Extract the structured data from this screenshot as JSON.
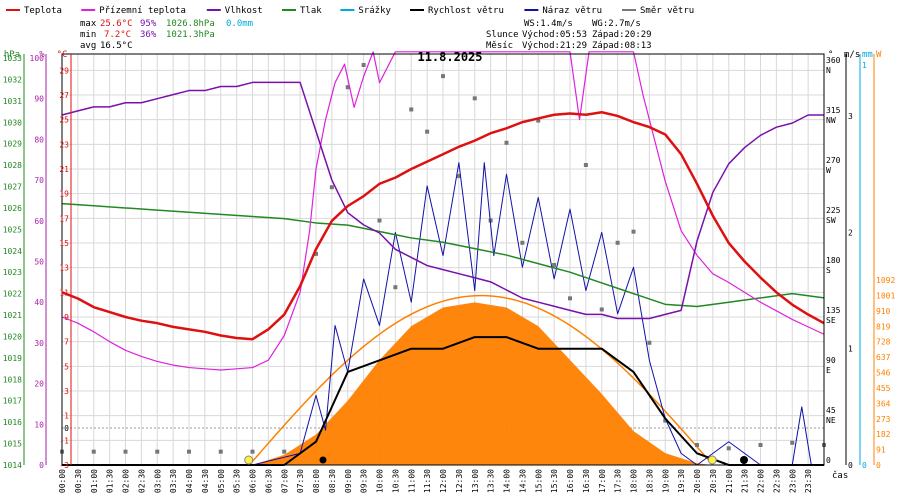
{
  "chart_data": {
    "type": "line",
    "title": "11.8.2025",
    "x_label": "čas",
    "x_ticks": [
      "00:00",
      "00:30",
      "01:00",
      "01:30",
      "02:00",
      "02:30",
      "03:00",
      "03:30",
      "04:00",
      "04:30",
      "05:00",
      "05:30",
      "06:00",
      "06:30",
      "07:00",
      "07:30",
      "08:00",
      "08:30",
      "09:00",
      "09:30",
      "10:00",
      "10:30",
      "11:00",
      "11:30",
      "12:00",
      "12:30",
      "13:00",
      "13:30",
      "14:00",
      "14:30",
      "15:00",
      "15:30",
      "16:00",
      "16:30",
      "17:00",
      "17:30",
      "18:00",
      "18:30",
      "19:00",
      "19:30",
      "20:00",
      "20:30",
      "21:00",
      "21:30",
      "22:00",
      "22:30",
      "23:00",
      "23:30"
    ],
    "legend": [
      {
        "label": "Teplota",
        "color": "#dd1111"
      },
      {
        "label": "Přízemní teplota",
        "color": "#dd22dd"
      },
      {
        "label": "Vlhkost",
        "color": "#7711aa"
      },
      {
        "label": "Tlak",
        "color": "#228822"
      },
      {
        "label": "Srážky",
        "color": "#00aadd"
      },
      {
        "label": "Rychlost větru",
        "color": "#000000"
      },
      {
        "label": "Náraz větru",
        "color": "#1111aa"
      },
      {
        "label": "Směr větru",
        "color": "#777777"
      }
    ],
    "stats": {
      "max": {
        "label": "max",
        "temp": "25.6°C",
        "hum": "95%",
        "press": "1026.8hPa",
        "rain": "0.0mm"
      },
      "min": {
        "label": "min",
        "temp": "7.2°C",
        "hum": "36%",
        "press": "1021.3hPa"
      },
      "avg": {
        "label": "avg",
        "temp": "16.5°C"
      }
    },
    "info": {
      "ws": "WS:1.4m/s",
      "wg": "WG:2.7m/s",
      "sun_label": "Slunce",
      "sun_rise": "Východ:05:53",
      "sun_set": "Západ:20:29",
      "moon_label": "Měsíc",
      "moon_rise": "Východ:21:29",
      "moon_set": "Západ:08:13"
    },
    "axes": {
      "hpa": {
        "label": "hPa",
        "ticks": [
          "1014",
          "1015",
          "1016",
          "1017",
          "1018",
          "1019",
          "1020",
          "1021",
          "1022",
          "1023",
          "1024",
          "1025",
          "1026",
          "1027",
          "1028",
          "1029",
          "1030",
          "1031",
          "1032",
          "1033"
        ]
      },
      "percent": {
        "label": "%",
        "ticks": [
          "0",
          "10",
          "20",
          "30",
          "40",
          "50",
          "60",
          "70",
          "80",
          "90",
          "100"
        ]
      },
      "celsius": {
        "label": "°C",
        "ticks": [
          "-3",
          "-1",
          "1",
          "3",
          "5",
          "7",
          "9",
          "11",
          "13",
          "15",
          "17",
          "19",
          "21",
          "23",
          "25",
          "27",
          "29"
        ]
      },
      "cgrid_extra": [
        "0"
      ],
      "direction": {
        "label": "°",
        "ticks": [
          "0",
          "45 NE",
          "90 E",
          "135 SE",
          "180 S",
          "225 SW",
          "270 W",
          "315 NW",
          "360 N"
        ]
      },
      "wind": {
        "label": "m/s",
        "ticks": [
          "0",
          "1",
          "2",
          "3"
        ]
      },
      "rain": {
        "label": "mm",
        "ticks": [
          "0",
          "1"
        ]
      },
      "solar": {
        "label": "W",
        "ticks": [
          "0",
          "91",
          "182",
          "273",
          "364",
          "455",
          "546",
          "637",
          "728",
          "819",
          "910",
          "1001",
          "1092"
        ]
      }
    },
    "series": {
      "temperature_c": {
        "name": "Teplota",
        "x_hours": [
          0,
          0.5,
          1,
          1.5,
          2,
          2.5,
          3,
          3.5,
          4,
          4.5,
          5,
          5.5,
          6,
          6.5,
          7,
          7.5,
          8,
          8.5,
          9,
          9.5,
          10,
          10.5,
          11,
          11.5,
          12,
          12.5,
          13,
          13.5,
          14,
          14.5,
          15,
          15.5,
          16,
          16.5,
          17,
          17.5,
          18,
          18.5,
          19,
          19.5,
          20,
          20.5,
          21,
          21.5,
          22,
          22.5,
          23,
          23.5,
          24
        ],
        "values": [
          11.0,
          10.5,
          9.8,
          9.4,
          9.0,
          8.7,
          8.5,
          8.2,
          8.0,
          7.8,
          7.5,
          7.3,
          7.2,
          8.0,
          9.2,
          11.5,
          14.5,
          16.8,
          18.0,
          18.8,
          19.8,
          20.3,
          21.0,
          21.6,
          22.2,
          22.8,
          23.3,
          23.9,
          24.3,
          24.8,
          25.1,
          25.4,
          25.5,
          25.4,
          25.6,
          25.3,
          24.8,
          24.4,
          23.8,
          22.2,
          19.8,
          17.2,
          15.0,
          13.5,
          12.2,
          11.0,
          10.0,
          9.2,
          8.5
        ]
      },
      "ground_temperature_c": {
        "name": "Přízemní teplota",
        "x_hours": [
          0,
          0.5,
          1,
          1.5,
          2,
          2.5,
          3,
          3.5,
          4,
          4.5,
          5,
          5.5,
          6,
          6.5,
          7,
          7.5,
          7.8,
          8,
          8.3,
          8.6,
          8.9,
          9.2,
          9.5,
          9.8,
          10,
          10.5,
          11,
          11.5,
          12,
          12.5,
          13,
          13.5,
          14,
          14.5,
          15,
          15.5,
          16,
          16.3,
          16.6,
          17,
          17.5,
          18,
          18.3,
          18.6,
          19,
          19.5,
          20,
          20.5,
          21,
          21.5,
          22,
          22.5,
          23,
          23.5,
          24
        ],
        "values": [
          9.0,
          8.5,
          7.8,
          7.0,
          6.3,
          5.8,
          5.4,
          5.1,
          4.9,
          4.8,
          4.7,
          4.8,
          4.9,
          5.5,
          7.5,
          11.0,
          16.0,
          21.0,
          25.0,
          28.0,
          29.5,
          26.0,
          28.5,
          30.5,
          28.0,
          30.5,
          30.5,
          30.5,
          30.5,
          30.5,
          30.5,
          30.5,
          30.5,
          30.5,
          30.5,
          30.5,
          30.5,
          25.0,
          30.5,
          30.5,
          30.5,
          30.5,
          27.0,
          24.0,
          20.0,
          16.0,
          14.0,
          12.5,
          11.8,
          11.0,
          10.2,
          9.5,
          8.8,
          8.2,
          7.6
        ]
      },
      "humidity_pct": {
        "name": "Vlhkost",
        "x_hours": [
          0,
          0.5,
          1,
          1.5,
          2,
          2.5,
          3,
          3.5,
          4,
          4.5,
          5,
          5.5,
          6,
          6.5,
          7,
          7.5,
          8,
          8.5,
          9,
          9.5,
          10,
          10.5,
          11,
          11.5,
          12,
          12.5,
          13,
          13.5,
          14,
          14.5,
          15,
          15.5,
          16,
          16.5,
          17,
          17.5,
          18,
          18.5,
          19,
          19.5,
          20,
          20.5,
          21,
          21.5,
          22,
          22.5,
          23,
          23.5,
          24
        ],
        "values": [
          86,
          87,
          88,
          88,
          89,
          89,
          90,
          91,
          92,
          92,
          93,
          93,
          94,
          94,
          94,
          94,
          82,
          70,
          62,
          59,
          57,
          53,
          51,
          49,
          48,
          47,
          46,
          45,
          43,
          41,
          40,
          39,
          38,
          37,
          37,
          36,
          36,
          36,
          37,
          38,
          55,
          67,
          74,
          78,
          81,
          83,
          84,
          86,
          86
        ]
      },
      "pressure_hpa": {
        "name": "Tlak",
        "x_hours": [
          0,
          1,
          2,
          3,
          4,
          5,
          6,
          7,
          8,
          9,
          10,
          11,
          12,
          13,
          14,
          15,
          16,
          17,
          18,
          19,
          20,
          21,
          22,
          23,
          24
        ],
        "values": [
          1026.2,
          1026.1,
          1026.0,
          1025.9,
          1025.8,
          1025.7,
          1025.6,
          1025.5,
          1025.3,
          1025.2,
          1024.9,
          1024.6,
          1024.4,
          1024.1,
          1023.8,
          1023.4,
          1023.0,
          1022.5,
          1022.0,
          1021.5,
          1021.4,
          1021.6,
          1021.8,
          1022.0,
          1021.8
        ]
      },
      "rain_mm": {
        "name": "Srážky",
        "x_hours": [
          0,
          24
        ],
        "values": [
          0,
          0
        ]
      },
      "wind_speed_ms": {
        "name": "Rychlost větru",
        "x_hours": [
          0,
          1,
          2,
          3,
          4,
          5,
          6,
          7,
          8,
          8.5,
          9,
          10,
          11,
          12,
          13,
          14,
          15,
          16,
          17,
          18,
          19,
          20,
          21,
          22,
          23,
          24
        ],
        "values": [
          0,
          0,
          0,
          0,
          0,
          0,
          0,
          0,
          0.2,
          0.5,
          0.8,
          0.9,
          1.0,
          1.0,
          1.1,
          1.1,
          1.0,
          1.0,
          1.0,
          0.8,
          0.4,
          0.1,
          0,
          0,
          0,
          0
        ]
      },
      "wind_gust_ms": {
        "name": "Náraz větru",
        "x_hours": [
          0,
          2,
          4,
          6,
          7.5,
          8,
          8.3,
          8.6,
          9,
          9.5,
          10,
          10.5,
          11,
          11.5,
          12,
          12.5,
          13,
          13.3,
          13.6,
          14,
          14.5,
          15,
          15.5,
          16,
          16.5,
          17,
          17.5,
          18,
          18.5,
          19,
          19.5,
          20,
          21,
          22,
          23,
          23.3,
          23.6,
          24
        ],
        "values": [
          0,
          0,
          0,
          0,
          0.1,
          0.6,
          0.3,
          1.2,
          0.8,
          1.6,
          1.2,
          2.0,
          1.4,
          2.4,
          1.8,
          2.6,
          1.5,
          2.6,
          1.8,
          2.5,
          1.7,
          2.3,
          1.6,
          2.2,
          1.5,
          2.0,
          1.3,
          1.7,
          0.9,
          0.4,
          0.1,
          0,
          0.2,
          0,
          0,
          0.5,
          0,
          0
        ]
      },
      "solar_wm2": {
        "name": "Sluneční záření",
        "x_hours": [
          6,
          7,
          8,
          9,
          10,
          11,
          12,
          13,
          14,
          15,
          16,
          17,
          18,
          19,
          20,
          20.5
        ],
        "values": [
          0,
          60,
          180,
          380,
          620,
          820,
          930,
          960,
          930,
          820,
          620,
          420,
          200,
          70,
          10,
          0
        ]
      },
      "wind_direction_deg": {
        "name": "Směr větru",
        "x_hours": [
          0,
          1,
          2,
          3,
          4,
          5,
          6,
          7,
          8,
          8.5,
          9,
          9.5,
          10,
          10.5,
          11,
          11.5,
          12,
          12.5,
          13,
          13.5,
          14,
          14.5,
          15,
          15.5,
          16,
          16.5,
          17,
          17.5,
          18,
          18.5,
          19,
          20,
          21,
          22,
          23,
          24
        ],
        "values": [
          12,
          12,
          12,
          12,
          12,
          12,
          12,
          12,
          190,
          250,
          340,
          360,
          220,
          160,
          320,
          300,
          350,
          260,
          330,
          220,
          290,
          200,
          310,
          180,
          150,
          270,
          140,
          200,
          210,
          110,
          40,
          18,
          15,
          18,
          20,
          18
        ]
      }
    }
  }
}
